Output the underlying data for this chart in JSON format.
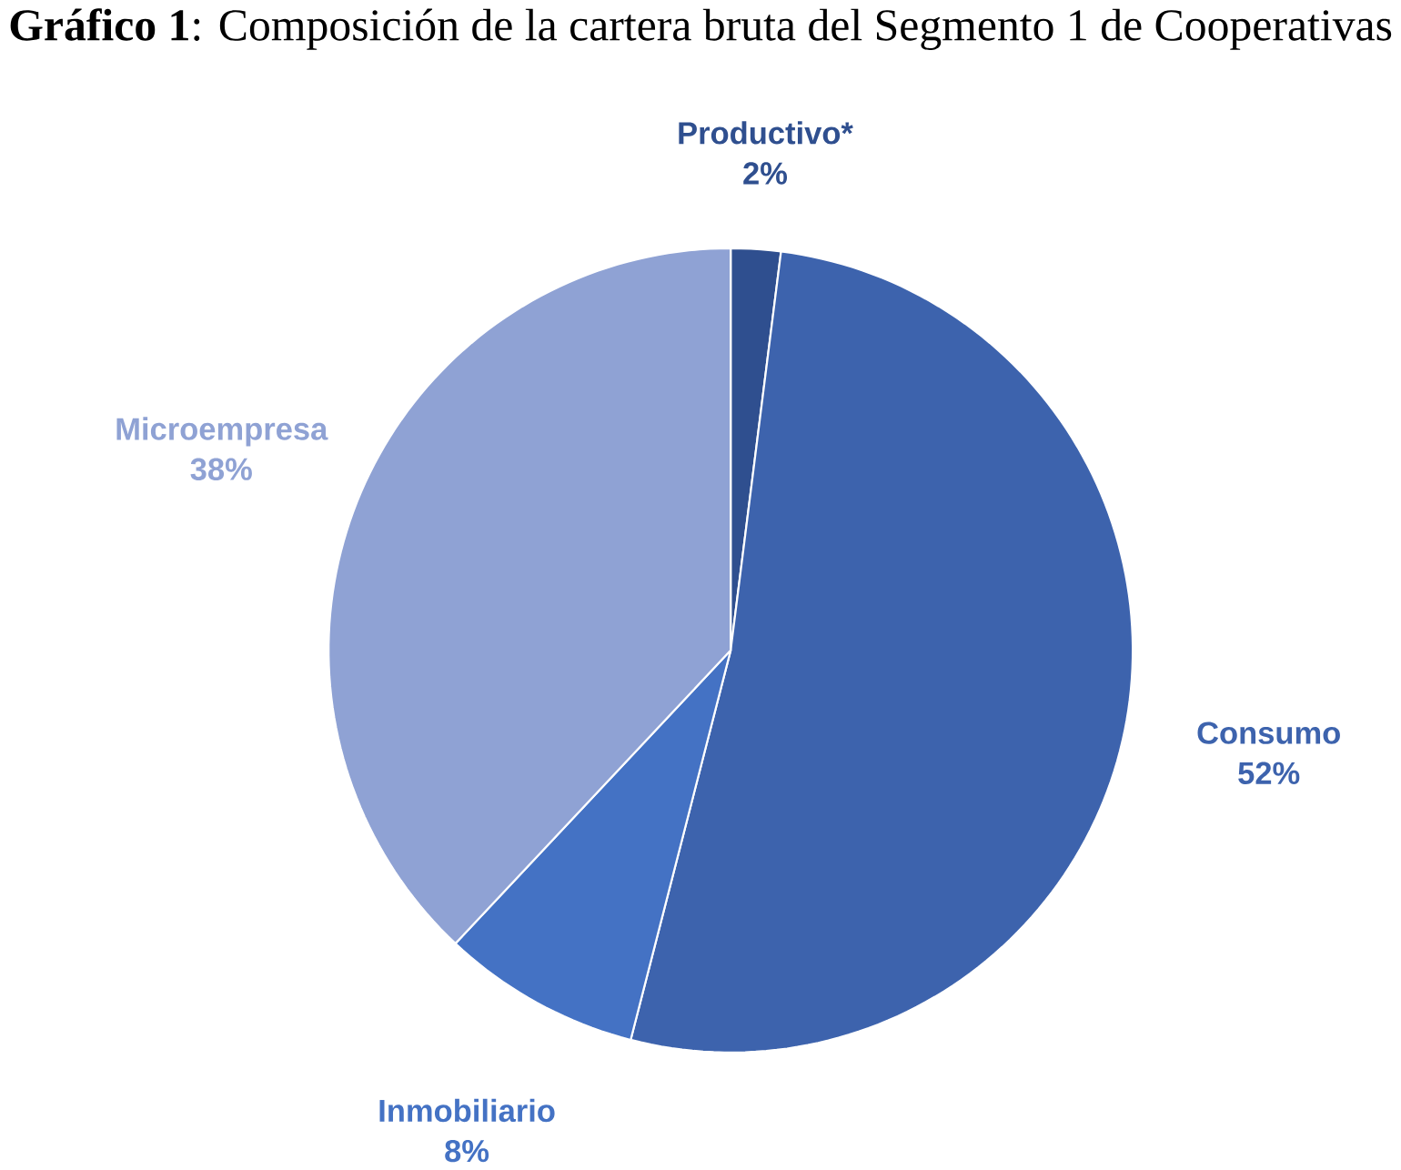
{
  "chart_data": {
    "type": "pie",
    "title": "**Gráfico 1**: Composición de la cartera bruta del Segmento 1 de Cooperativas",
    "categories": [
      "Productivo*",
      "Consumo",
      "Inmobiliario",
      "Microempresa"
    ],
    "values": [
      2,
      52,
      8,
      38
    ],
    "value_labels": [
      "2%",
      "52%",
      "8%",
      "38%"
    ],
    "colors": [
      "#2f4f8f",
      "#3d63ad",
      "#4472c4",
      "#8fa2d4"
    ]
  }
}
